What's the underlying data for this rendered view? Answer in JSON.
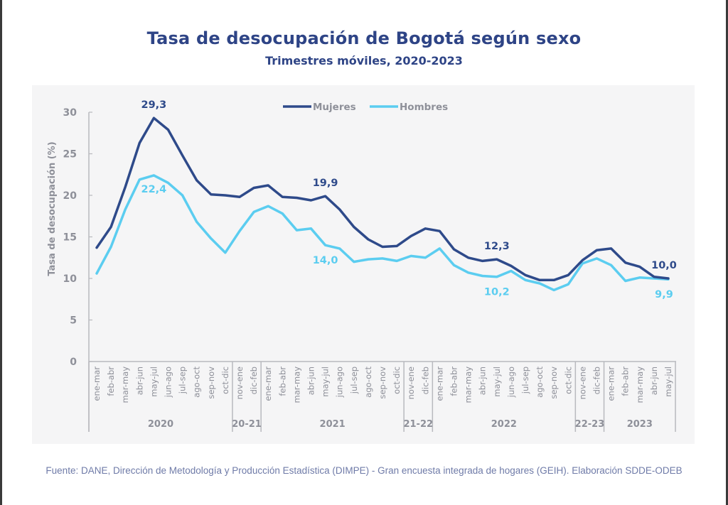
{
  "title": "Tasa de desocupación de Bogotá según sexo",
  "subtitle": "Trimestres móviles, 2020-2023",
  "footer": "Fuente: DANE, Dirección de Metodología y Producción Estadística (DIMPE) - Gran encuesta integrada de hogares (GEIH). Elaboración SDDE-ODEB",
  "colors": {
    "mujeres": "#2e4a8a",
    "hombres": "#5bcdf0",
    "axis_text": "#8e9099",
    "axis_line": "#b8b9be"
  },
  "chart_data": {
    "type": "line",
    "title": "Tasa de desocupación de Bogotá según sexo",
    "subtitle": "Trimestres móviles, 2020-2023",
    "xlabel": "",
    "ylabel": "Tasa de desocupación (%)",
    "ylim": [
      0,
      30
    ],
    "yticks": [
      0,
      5,
      10,
      15,
      20,
      25,
      30
    ],
    "grid": false,
    "legend": "top-center",
    "categories": [
      "ene-mar",
      "feb-abr",
      "mar-may",
      "abr-jun",
      "may-jul",
      "jun-ago",
      "jul-sep",
      "ago-oct",
      "sep-nov",
      "oct-dic",
      "nov-ene",
      "dic-feb",
      "ene-mar",
      "feb-abr",
      "mar-may",
      "abr-jun",
      "may-jul",
      "jun-ago",
      "jul-sep",
      "ago-oct",
      "sep-nov",
      "oct-dic",
      "nov-ene",
      "dic-feb",
      "ene-mar",
      "feb-abr",
      "mar-may",
      "abr-jun",
      "may-jul",
      "jun-ago",
      "jul-sep",
      "ago-oct",
      "sep-nov",
      "oct-dic",
      "nov-ene",
      "dic-feb",
      "ene-mar",
      "feb-abr",
      "mar-may",
      "abr-jun",
      "may-jul"
    ],
    "groups": [
      {
        "label": "2020",
        "count": 10
      },
      {
        "label": "20-21",
        "count": 2
      },
      {
        "label": "2021",
        "count": 10
      },
      {
        "label": "21-22",
        "count": 2
      },
      {
        "label": "2022",
        "count": 10
      },
      {
        "label": "22-23",
        "count": 2
      },
      {
        "label": "2023",
        "count": 5
      }
    ],
    "series": [
      {
        "name": "Mujeres",
        "values": [
          13.7,
          16.2,
          21.0,
          26.3,
          29.3,
          27.9,
          24.8,
          21.8,
          20.1,
          20.0,
          19.8,
          20.9,
          21.2,
          19.8,
          19.7,
          19.4,
          19.9,
          18.3,
          16.2,
          14.7,
          13.8,
          13.9,
          15.1,
          16.0,
          15.7,
          13.5,
          12.5,
          12.1,
          12.3,
          11.5,
          10.4,
          9.8,
          9.8,
          10.4,
          12.2,
          13.4,
          13.6,
          11.9,
          11.4,
          10.2,
          10.0
        ]
      },
      {
        "name": "Hombres",
        "values": [
          10.6,
          13.8,
          18.3,
          21.9,
          22.4,
          21.5,
          20.0,
          16.8,
          14.8,
          13.1,
          15.7,
          18.0,
          18.7,
          17.8,
          15.8,
          16.0,
          14.0,
          13.6,
          12.0,
          12.3,
          12.4,
          12.1,
          12.7,
          12.5,
          13.6,
          11.6,
          10.7,
          10.3,
          10.2,
          10.9,
          9.8,
          9.4,
          8.6,
          9.3,
          11.8,
          12.4,
          11.6,
          9.7,
          10.1,
          10.0,
          9.9
        ]
      }
    ],
    "annotations": [
      {
        "series": "Mujeres",
        "index": 4,
        "text": "29,3",
        "position": "above"
      },
      {
        "series": "Hombres",
        "index": 4,
        "text": "22,4",
        "position": "below"
      },
      {
        "series": "Mujeres",
        "index": 16,
        "text": "19,9",
        "position": "above"
      },
      {
        "series": "Hombres",
        "index": 16,
        "text": "14,0",
        "position": "below"
      },
      {
        "series": "Mujeres",
        "index": 28,
        "text": "12,3",
        "position": "above"
      },
      {
        "series": "Hombres",
        "index": 28,
        "text": "10,2",
        "position": "below"
      },
      {
        "series": "Mujeres",
        "index": 40,
        "text": "10,0",
        "position": "above"
      },
      {
        "series": "Hombres",
        "index": 40,
        "text": "9,9",
        "position": "below"
      }
    ]
  }
}
